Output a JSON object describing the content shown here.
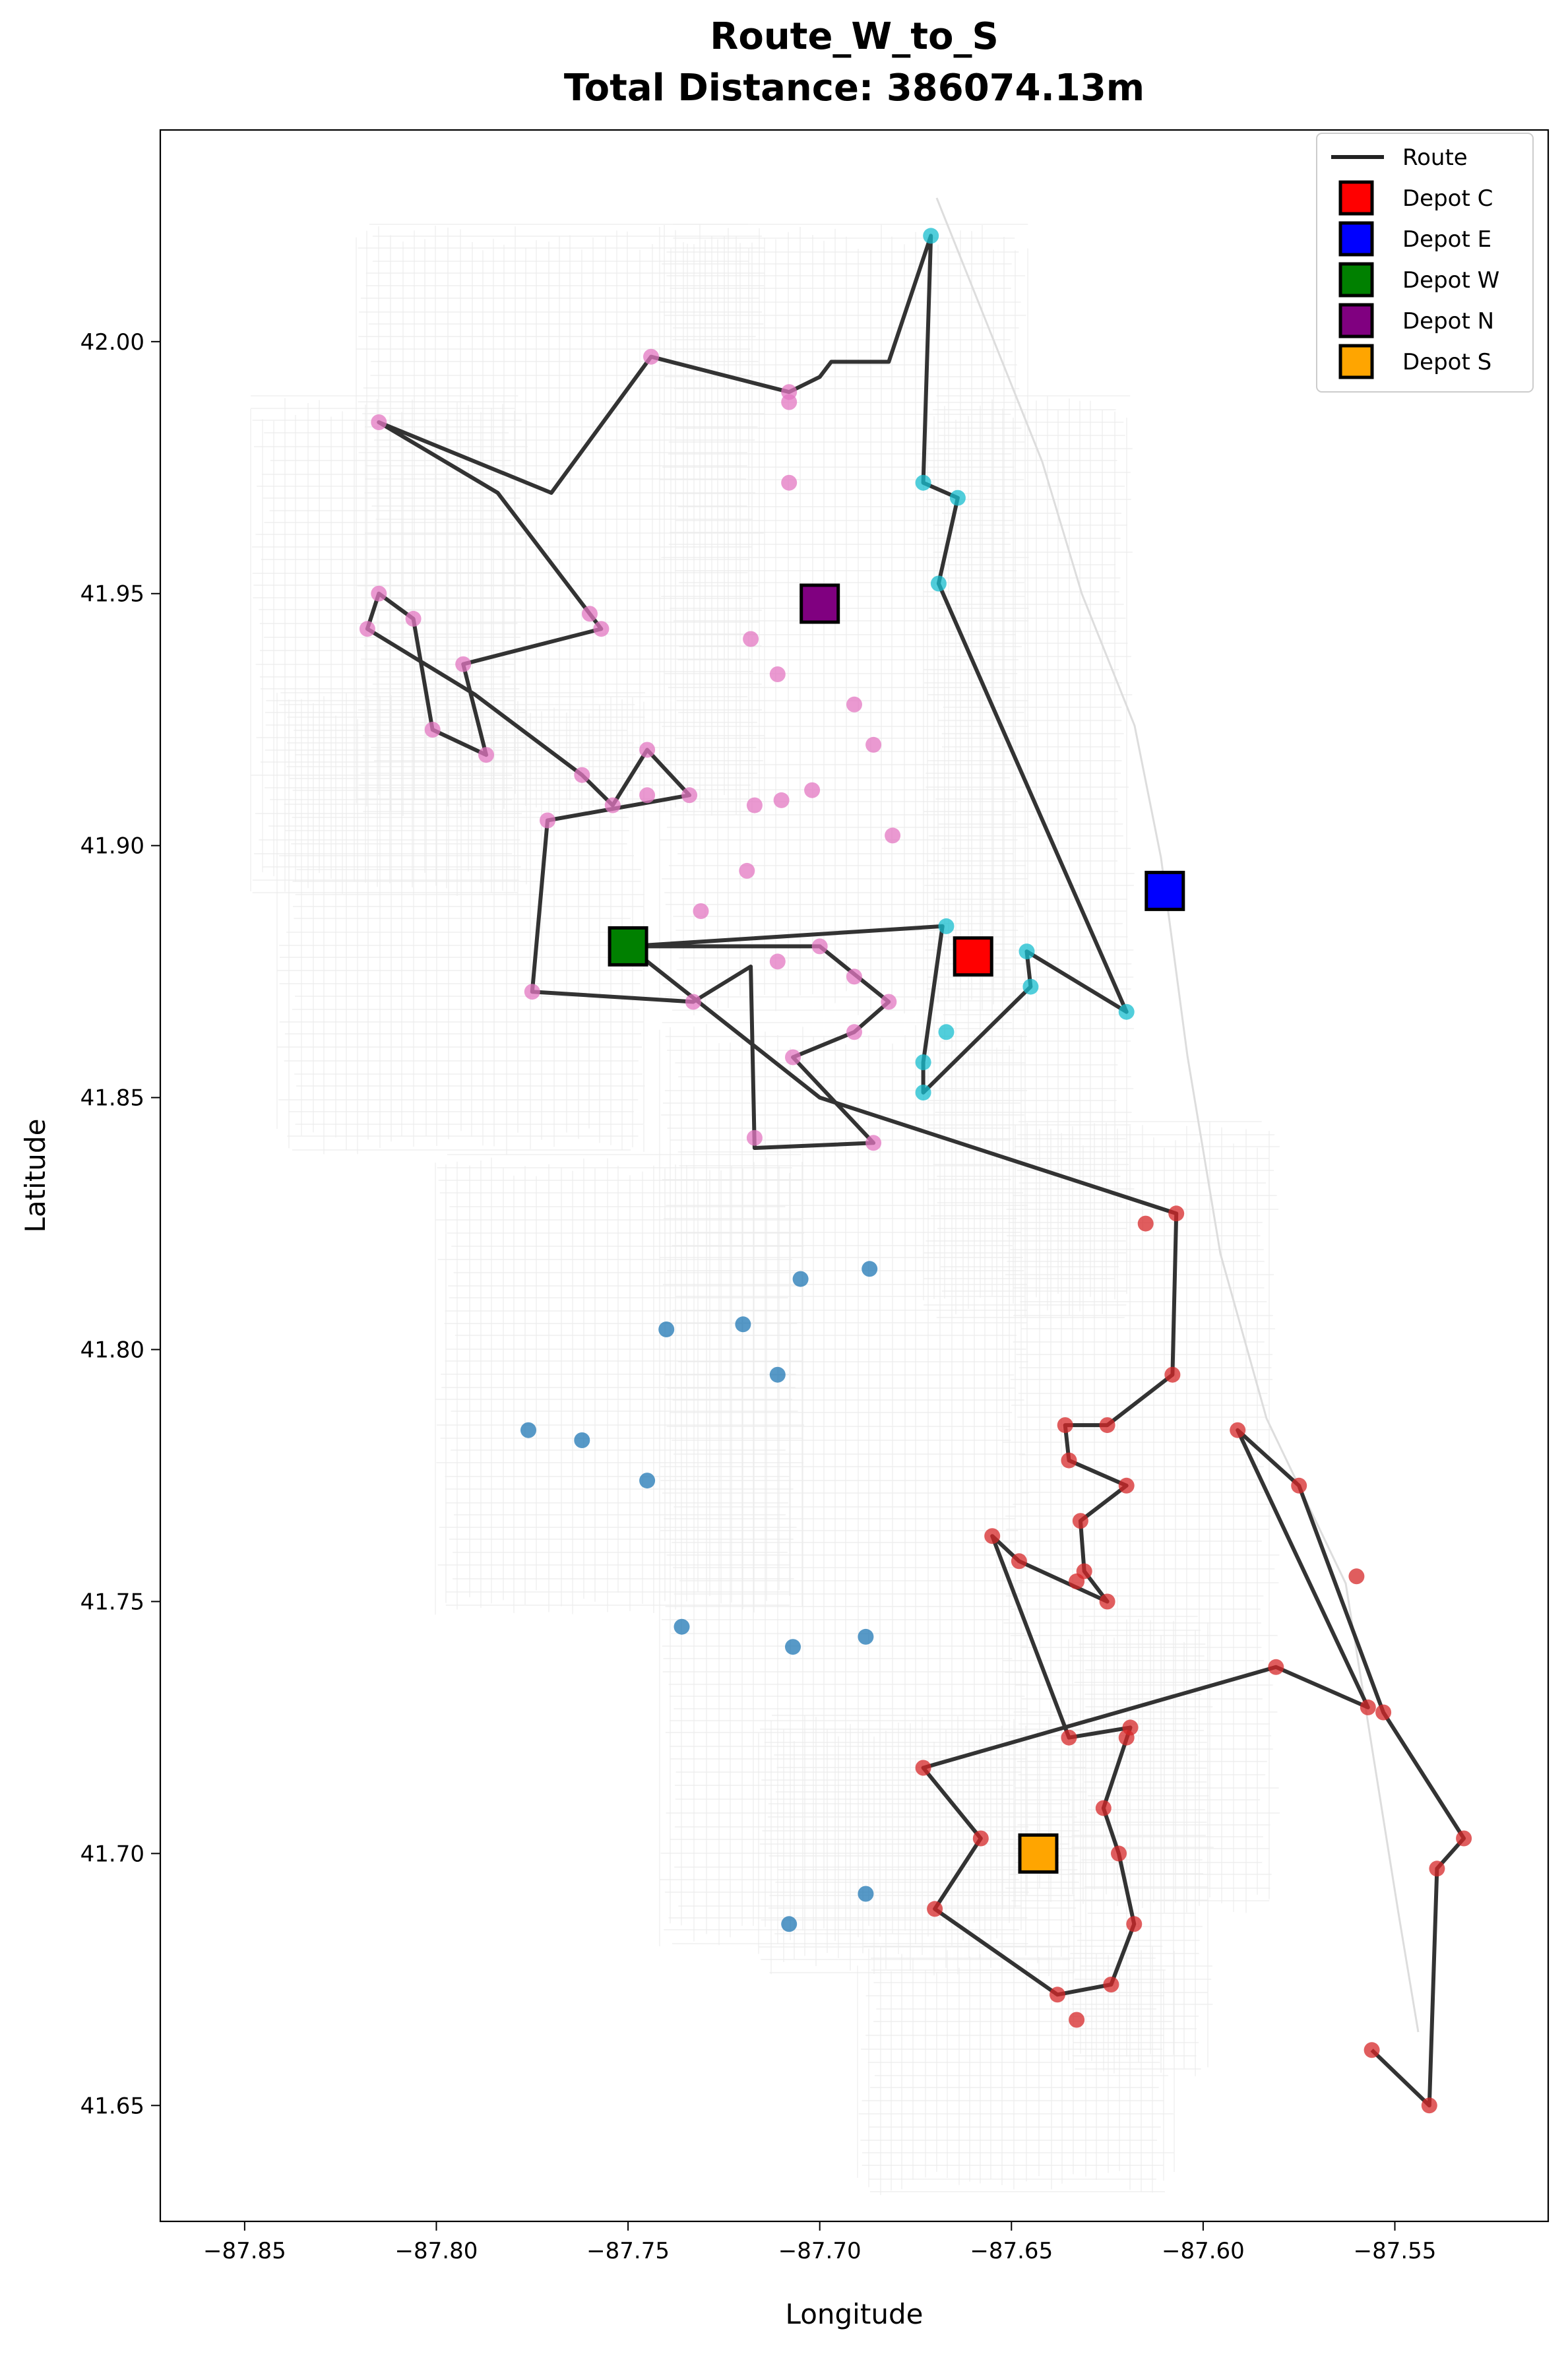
{
  "chart_data": {
    "type": "scatter",
    "title": "Route_W_to_S",
    "subtitle": "Total Distance: 386074.13m",
    "xlabel": "Longitude",
    "ylabel": "Latitude",
    "xlim": [
      -87.872,
      -87.51
    ],
    "ylim": [
      41.627,
      42.042
    ],
    "xticks": [
      -87.85,
      -87.8,
      -87.75,
      -87.7,
      -87.65,
      -87.6,
      -87.55
    ],
    "xtick_labels": [
      "−87.85",
      "−87.80",
      "−87.75",
      "−87.70",
      "−87.65",
      "−87.60",
      "−87.55"
    ],
    "yticks": [
      41.65,
      41.7,
      41.75,
      41.8,
      41.85,
      41.9,
      41.95,
      42.0
    ],
    "ytick_labels": [
      "41.65",
      "41.70",
      "41.75",
      "41.80",
      "41.85",
      "41.90",
      "41.95",
      "42.00"
    ],
    "legend_position": "top-right",
    "legend": [
      {
        "label": "Route",
        "kind": "line",
        "color": "#222222"
      },
      {
        "label": "Depot C",
        "kind": "square",
        "color": "#ff0000"
      },
      {
        "label": "Depot E",
        "kind": "square",
        "color": "#0000ff"
      },
      {
        "label": "Depot W",
        "kind": "square",
        "color": "#008000"
      },
      {
        "label": "Depot N",
        "kind": "square",
        "color": "#800080"
      },
      {
        "label": "Depot S",
        "kind": "square",
        "color": "#ffa500"
      }
    ],
    "depots": [
      {
        "name": "Depot C",
        "lon": -87.66,
        "lat": 41.878,
        "color": "#ff0000"
      },
      {
        "name": "Depot E",
        "lon": -87.61,
        "lat": 41.891,
        "color": "#0000ff"
      },
      {
        "name": "Depot W",
        "lon": -87.75,
        "lat": 41.88,
        "color": "#008000"
      },
      {
        "name": "Depot N",
        "lon": -87.7,
        "lat": 41.948,
        "color": "#800080"
      },
      {
        "name": "Depot S",
        "lon": -87.643,
        "lat": 41.7,
        "color": "#ffa500"
      }
    ],
    "route_color": "#222222",
    "series": [
      {
        "color": "#e377c2",
        "points": [
          [
            -87.744,
            41.997
          ],
          [
            -87.708,
            41.99
          ],
          [
            -87.708,
            41.988
          ],
          [
            -87.708,
            41.972
          ],
          [
            -87.815,
            41.984
          ],
          [
            -87.815,
            41.95
          ],
          [
            -87.818,
            41.943
          ],
          [
            -87.806,
            41.945
          ],
          [
            -87.801,
            41.923
          ],
          [
            -87.793,
            41.936
          ],
          [
            -87.787,
            41.918
          ],
          [
            -87.76,
            41.946
          ],
          [
            -87.757,
            41.943
          ],
          [
            -87.762,
            41.914
          ],
          [
            -87.754,
            41.908
          ],
          [
            -87.745,
            41.919
          ],
          [
            -87.745,
            41.91
          ],
          [
            -87.734,
            41.91
          ],
          [
            -87.771,
            41.905
          ],
          [
            -87.775,
            41.871
          ],
          [
            -87.733,
            41.869
          ],
          [
            -87.731,
            41.887
          ],
          [
            -87.719,
            41.895
          ],
          [
            -87.717,
            41.908
          ],
          [
            -87.71,
            41.909
          ],
          [
            -87.702,
            41.911
          ],
          [
            -87.718,
            41.941
          ],
          [
            -87.711,
            41.934
          ],
          [
            -87.691,
            41.928
          ],
          [
            -87.686,
            41.92
          ],
          [
            -87.681,
            41.902
          ],
          [
            -87.7,
            41.88
          ],
          [
            -87.711,
            41.877
          ],
          [
            -87.691,
            41.874
          ],
          [
            -87.682,
            41.869
          ],
          [
            -87.691,
            41.863
          ],
          [
            -87.707,
            41.858
          ],
          [
            -87.717,
            41.842
          ],
          [
            -87.686,
            41.841
          ]
        ]
      },
      {
        "color": "#17becf",
        "points": [
          [
            -87.671,
            42.021
          ],
          [
            -87.673,
            41.972
          ],
          [
            -87.664,
            41.969
          ],
          [
            -87.669,
            41.952
          ],
          [
            -87.62,
            41.867
          ],
          [
            -87.667,
            41.884
          ],
          [
            -87.646,
            41.879
          ],
          [
            -87.645,
            41.872
          ],
          [
            -87.667,
            41.863
          ],
          [
            -87.673,
            41.857
          ],
          [
            -87.673,
            41.851
          ]
        ]
      },
      {
        "color": "#1f77b4",
        "points": [
          [
            -87.72,
            41.805
          ],
          [
            -87.705,
            41.814
          ],
          [
            -87.687,
            41.816
          ],
          [
            -87.711,
            41.795
          ],
          [
            -87.74,
            41.804
          ],
          [
            -87.745,
            41.774
          ],
          [
            -87.762,
            41.782
          ],
          [
            -87.776,
            41.784
          ],
          [
            -87.736,
            41.745
          ],
          [
            -87.707,
            41.741
          ],
          [
            -87.688,
            41.743
          ],
          [
            -87.688,
            41.692
          ],
          [
            -87.708,
            41.686
          ]
        ]
      },
      {
        "color": "#d62728",
        "points": [
          [
            -87.607,
            41.827
          ],
          [
            -87.615,
            41.825
          ],
          [
            -87.608,
            41.795
          ],
          [
            -87.625,
            41.785
          ],
          [
            -87.636,
            41.785
          ],
          [
            -87.635,
            41.778
          ],
          [
            -87.62,
            41.773
          ],
          [
            -87.632,
            41.766
          ],
          [
            -87.631,
            41.756
          ],
          [
            -87.633,
            41.754
          ],
          [
            -87.625,
            41.75
          ],
          [
            -87.655,
            41.763
          ],
          [
            -87.648,
            41.758
          ],
          [
            -87.635,
            41.723
          ],
          [
            -87.619,
            41.725
          ],
          [
            -87.62,
            41.723
          ],
          [
            -87.626,
            41.709
          ],
          [
            -87.622,
            41.7
          ],
          [
            -87.618,
            41.686
          ],
          [
            -87.624,
            41.674
          ],
          [
            -87.638,
            41.672
          ],
          [
            -87.633,
            41.667
          ],
          [
            -87.67,
            41.689
          ],
          [
            -87.658,
            41.703
          ],
          [
            -87.673,
            41.717
          ],
          [
            -87.591,
            41.784
          ],
          [
            -87.575,
            41.773
          ],
          [
            -87.581,
            41.737
          ],
          [
            -87.56,
            41.755
          ],
          [
            -87.557,
            41.729
          ],
          [
            -87.553,
            41.728
          ],
          [
            -87.532,
            41.703
          ],
          [
            -87.539,
            41.697
          ],
          [
            -87.541,
            41.65
          ],
          [
            -87.556,
            41.661
          ]
        ]
      }
    ],
    "route": [
      [
        -87.75,
        41.88
      ],
      [
        -87.668,
        41.884
      ],
      [
        -87.673,
        41.857
      ],
      [
        -87.673,
        41.851
      ],
      [
        -87.645,
        41.872
      ],
      [
        -87.646,
        41.879
      ],
      [
        -87.62,
        41.867
      ],
      [
        -87.669,
        41.952
      ],
      [
        -87.664,
        41.969
      ],
      [
        -87.673,
        41.972
      ],
      [
        -87.671,
        42.021
      ],
      [
        -87.682,
        41.996
      ],
      [
        -87.697,
        41.996
      ],
      [
        -87.7,
        41.993
      ],
      [
        -87.708,
        41.99
      ],
      [
        -87.744,
        41.997
      ],
      [
        -87.77,
        41.97
      ],
      [
        -87.815,
        41.984
      ],
      [
        -87.784,
        41.97
      ],
      [
        -87.76,
        41.946
      ],
      [
        -87.757,
        41.943
      ],
      [
        -87.793,
        41.936
      ],
      [
        -87.787,
        41.918
      ],
      [
        -87.801,
        41.923
      ],
      [
        -87.806,
        41.945
      ],
      [
        -87.815,
        41.95
      ],
      [
        -87.818,
        41.943
      ],
      [
        -87.79,
        41.93
      ],
      [
        -87.762,
        41.914
      ],
      [
        -87.754,
        41.908
      ],
      [
        -87.745,
        41.919
      ],
      [
        -87.734,
        41.91
      ],
      [
        -87.771,
        41.905
      ],
      [
        -87.775,
        41.871
      ],
      [
        -87.733,
        41.869
      ],
      [
        -87.718,
        41.876
      ],
      [
        -87.717,
        41.84
      ],
      [
        -87.686,
        41.841
      ],
      [
        -87.707,
        41.858
      ],
      [
        -87.691,
        41.863
      ],
      [
        -87.682,
        41.869
      ],
      [
        -87.7,
        41.88
      ],
      [
        -87.75,
        41.88
      ],
      [
        -87.7,
        41.85
      ],
      [
        -87.607,
        41.827
      ],
      [
        -87.608,
        41.795
      ],
      [
        -87.625,
        41.785
      ],
      [
        -87.636,
        41.785
      ],
      [
        -87.635,
        41.778
      ],
      [
        -87.62,
        41.773
      ],
      [
        -87.632,
        41.766
      ],
      [
        -87.631,
        41.756
      ],
      [
        -87.625,
        41.75
      ],
      [
        -87.648,
        41.758
      ],
      [
        -87.655,
        41.763
      ],
      [
        -87.635,
        41.723
      ],
      [
        -87.619,
        41.725
      ],
      [
        -87.626,
        41.709
      ],
      [
        -87.622,
        41.7
      ],
      [
        -87.618,
        41.686
      ],
      [
        -87.624,
        41.674
      ],
      [
        -87.638,
        41.672
      ],
      [
        -87.67,
        41.689
      ],
      [
        -87.658,
        41.703
      ],
      [
        -87.673,
        41.717
      ],
      [
        -87.581,
        41.737
      ],
      [
        -87.557,
        41.729
      ],
      [
        -87.591,
        41.784
      ],
      [
        -87.575,
        41.773
      ],
      [
        -87.553,
        41.728
      ],
      [
        -87.532,
        41.703
      ],
      [
        -87.539,
        41.697
      ],
      [
        -87.541,
        41.65
      ],
      [
        -87.556,
        41.661
      ]
    ]
  }
}
